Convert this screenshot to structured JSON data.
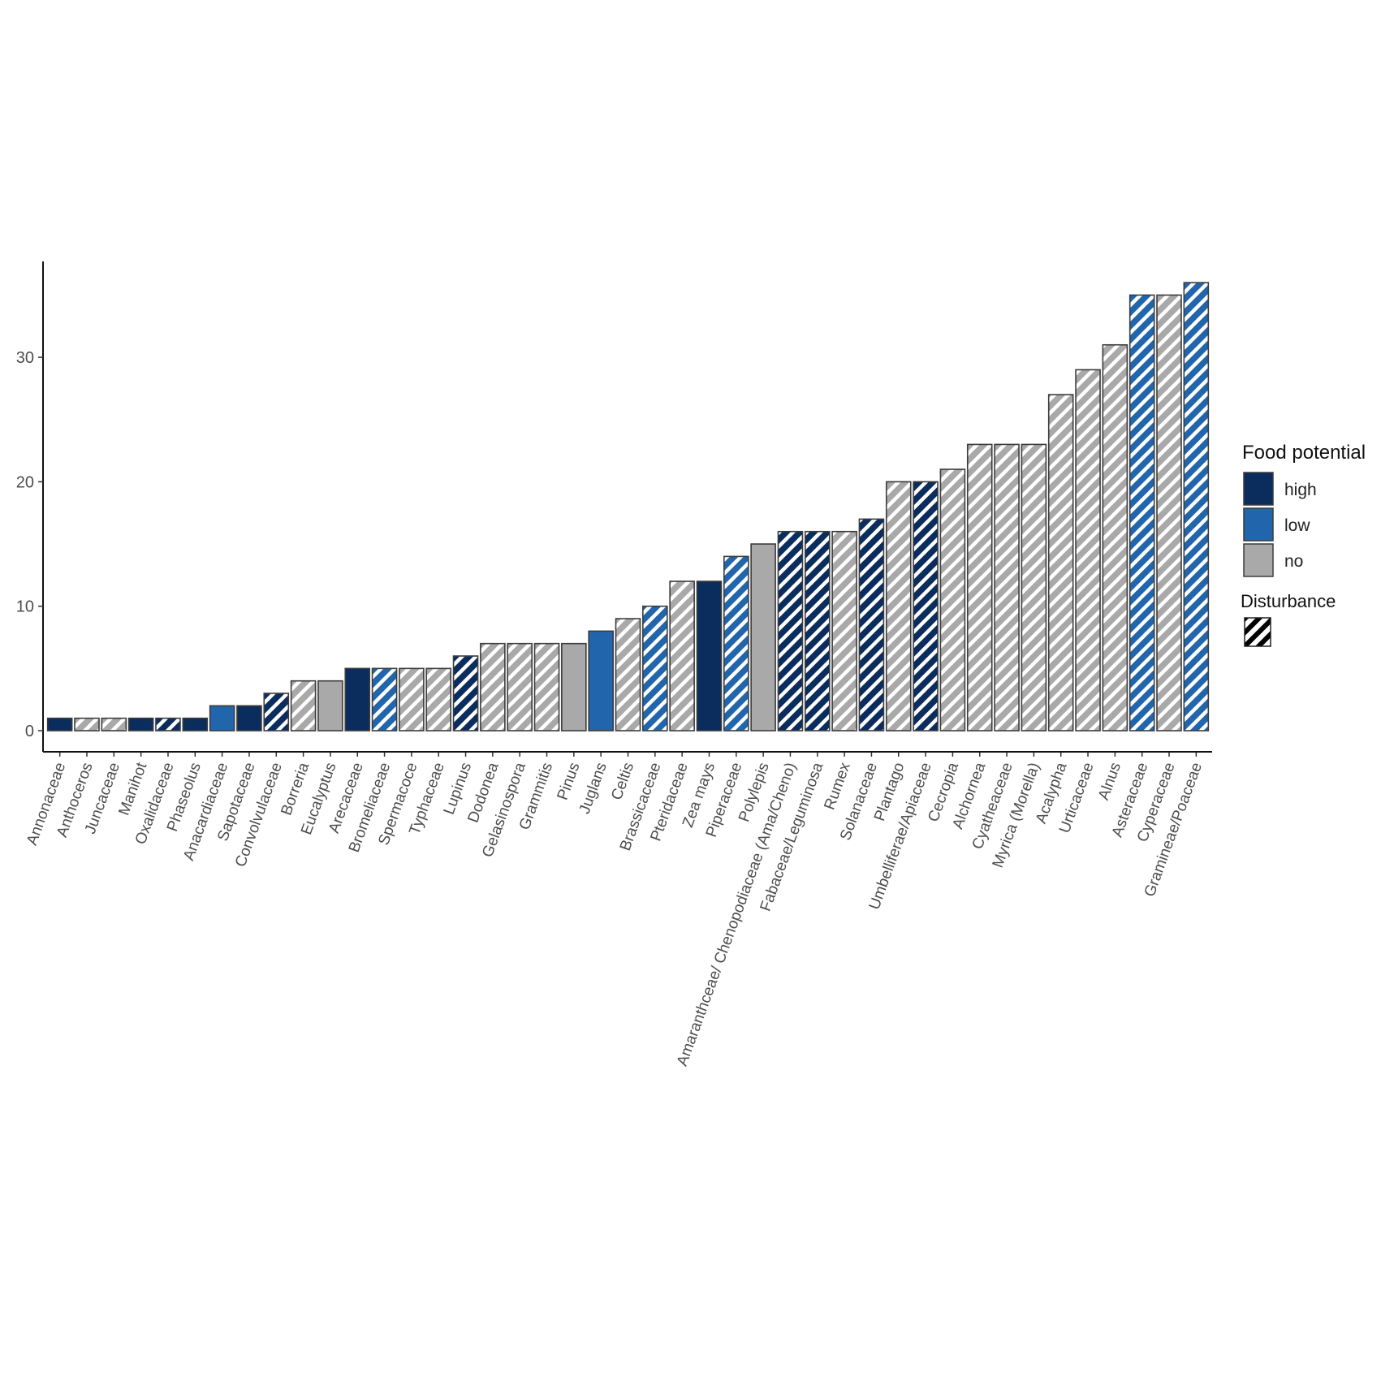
{
  "chart_data": {
    "type": "bar",
    "title": "",
    "xlabel": "",
    "ylabel": "",
    "ylim": [
      0,
      37.5
    ],
    "yticks": [
      0,
      10,
      20,
      30
    ],
    "grid": false,
    "legend_position": "right",
    "colors": {
      "high": "#0b2d5e",
      "low": "#2166ac",
      "no": "#a9a9a9",
      "stripe": "#ffffff",
      "border": "#3c3c3c"
    },
    "categories": [
      "Annonaceae",
      "Anthoceros",
      "Juncaceae",
      "Manihot",
      "Oxalidaceae",
      "Phaseolus",
      "Anacardiaceae",
      "Sapotaceae",
      "Convolvulaceae",
      "Borreria",
      "Eucalyptus",
      "Arecaceae",
      "Bromeliaceae",
      "Spermacoce",
      "Typhaceae",
      "Lupinus",
      "Dodonea",
      "Gelasinospora",
      "Grammitis",
      "Pinus",
      "Juglans",
      "Celtis",
      "Brassicaceae",
      "Pteridaceae",
      "Zea mays",
      "Piperaceae",
      "Polylepis",
      "Amaranthceae/ Chenopodiaceae (Ama/Cheno)",
      "Fabaceae/Leguminosa",
      "Rumex",
      "Solanaceae",
      "Plantago",
      "Umbelliferae/Apiaceae",
      "Cecropia",
      "Alchornea",
      "Cyatheaceae",
      "Myrica (Morella)",
      "Acalypha",
      "Urticaceae",
      "Alnus",
      "Asteraceae",
      "Cyperaceae",
      "Gramineae/Poaceae"
    ],
    "values": [
      1,
      1,
      1,
      1,
      1,
      1,
      2,
      2,
      3,
      4,
      4,
      5,
      5,
      5,
      5,
      6,
      7,
      7,
      7,
      7,
      8,
      9,
      10,
      12,
      12,
      14,
      15,
      16,
      16,
      16,
      17,
      20,
      20,
      21,
      23,
      23,
      23,
      27,
      29,
      31,
      35,
      35,
      36
    ],
    "food_potential": [
      "high",
      "no",
      "no",
      "high",
      "high",
      "high",
      "low",
      "high",
      "high",
      "no",
      "no",
      "high",
      "low",
      "no",
      "no",
      "high",
      "no",
      "no",
      "no",
      "no",
      "low",
      "no",
      "low",
      "no",
      "high",
      "low",
      "no",
      "high",
      "high",
      "no",
      "high",
      "no",
      "high",
      "no",
      "no",
      "no",
      "no",
      "no",
      "no",
      "no",
      "low",
      "no",
      "low"
    ],
    "disturbance": [
      false,
      true,
      true,
      false,
      true,
      false,
      false,
      false,
      true,
      true,
      false,
      false,
      true,
      true,
      true,
      true,
      true,
      true,
      true,
      false,
      false,
      true,
      true,
      true,
      false,
      true,
      false,
      true,
      true,
      true,
      true,
      true,
      true,
      true,
      true,
      true,
      true,
      true,
      true,
      true,
      true,
      true,
      true
    ]
  },
  "legend": {
    "food_title": "Food potential",
    "food_items": [
      {
        "key": "high",
        "label": "high"
      },
      {
        "key": "low",
        "label": "low"
      },
      {
        "key": "no",
        "label": "no"
      }
    ],
    "disturbance_title": "Disturbance"
  }
}
